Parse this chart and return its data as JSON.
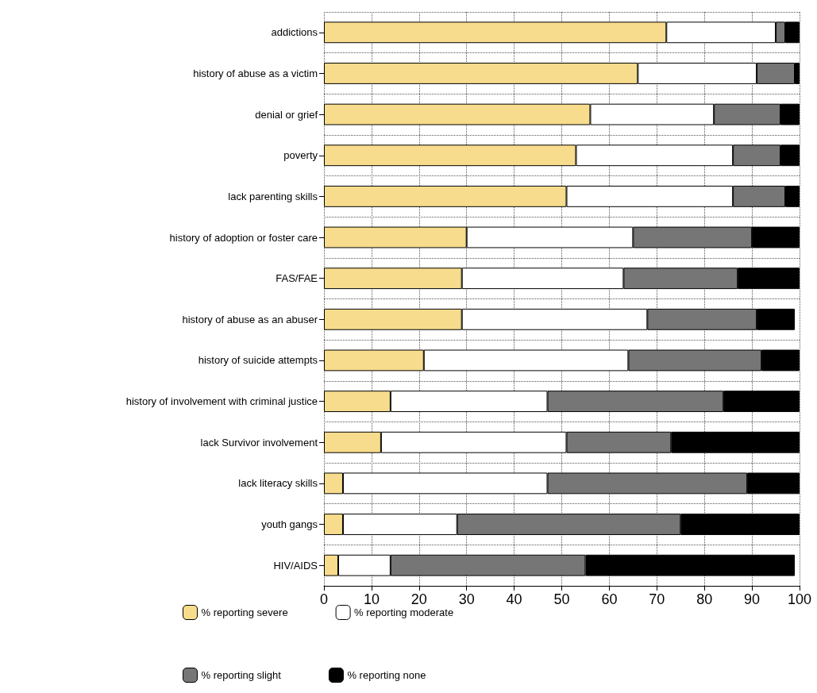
{
  "chart_data": {
    "type": "bar",
    "orientation": "horizontal",
    "stacked": true,
    "categories": [
      "addictions",
      "history of abuse as a victim",
      "denial or grief",
      "poverty",
      "lack parenting skills",
      "history of adoption or foster care",
      "FAS/FAE",
      "history of abuse as an abuser",
      "history of suicide attempts",
      "history of involvement with criminal justice",
      "lack Survivor involvement",
      "lack literacy skills",
      "youth gangs",
      "HIV/AIDS"
    ],
    "series": [
      {
        "name": "% reporting severe",
        "color": "#f6dc8c",
        "values": [
          72,
          66,
          56,
          53,
          51,
          30,
          29,
          29,
          21,
          14,
          12,
          4,
          4,
          3
        ]
      },
      {
        "name": "% reporting moderate",
        "color": "#ffffff",
        "values": [
          23,
          25,
          26,
          33,
          35,
          35,
          34,
          39,
          43,
          33,
          39,
          43,
          24,
          11
        ]
      },
      {
        "name": "% reporting slight",
        "color": "#767676",
        "values": [
          2,
          8,
          14,
          10,
          11,
          25,
          24,
          23,
          28,
          37,
          22,
          42,
          47,
          41
        ]
      },
      {
        "name": "% reporting none",
        "color": "#000000",
        "values": [
          3,
          1,
          4,
          4,
          3,
          10,
          13,
          8,
          8,
          16,
          27,
          11,
          25,
          44
        ]
      }
    ],
    "xlim": [
      0,
      100
    ],
    "xticks": [
      0,
      10,
      20,
      30,
      40,
      50,
      60,
      70,
      80,
      90,
      100
    ],
    "grid": true,
    "legend": "bottom"
  }
}
